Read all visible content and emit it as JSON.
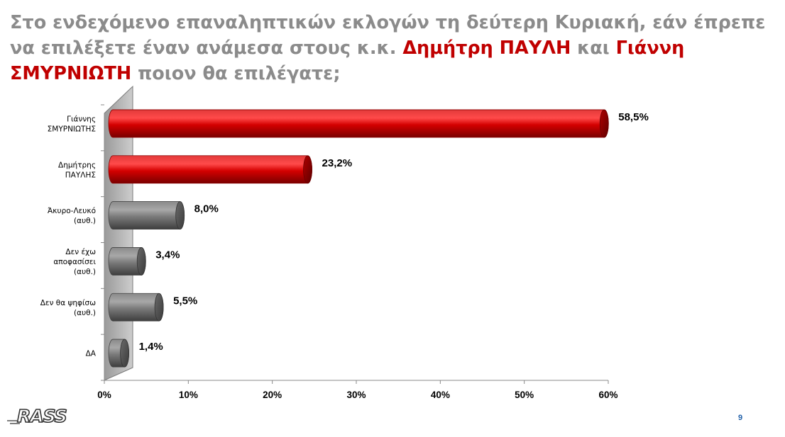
{
  "title": {
    "part1": "Στο ενδεχόμενο επαναληπτικών εκλογών τη δεύτερη Κυριακή, εάν έπρεπε να επιλέξετε έναν ανάμεσα στους κ.κ. ",
    "name1": "Δημήτρη ΠΑΥΛΗ",
    "part2": " και ",
    "name2": "Γιάννη ΣΜΥΡΝΙΩΤΗ",
    "part3": " ποιον θα επιλέγατε;"
  },
  "chart_data": {
    "type": "bar",
    "orientation": "horizontal",
    "categories": [
      [
        "Γιάννης",
        "ΣΜΥΡΝΙΩΤΗΣ"
      ],
      [
        "Δημήτρης",
        "ΠΑΥΛΗΣ"
      ],
      [
        "Άκυρο-Λευκό",
        "(αυθ.)"
      ],
      [
        "Δεν έχω",
        "αποφασίσει",
        "(αυθ.)"
      ],
      [
        "Δεν θα ψηφίσω",
        "(αυθ.)"
      ],
      [
        "ΔΑ"
      ]
    ],
    "values": [
      58.5,
      23.2,
      8.0,
      3.4,
      5.5,
      1.4
    ],
    "value_labels": [
      "58,5%",
      "23,2%",
      "8,0%",
      "3,4%",
      "5,5%",
      "1,4%"
    ],
    "colors": [
      "#cc0000",
      "#cc0000",
      "#808080",
      "#808080",
      "#808080",
      "#808080"
    ],
    "xlim": [
      0,
      60
    ],
    "xticks": [
      0,
      10,
      20,
      30,
      40,
      50,
      60
    ],
    "xtick_labels": [
      "0%",
      "10%",
      "20%",
      "30%",
      "40%",
      "50%",
      "60%"
    ],
    "style": "3d-cylinder",
    "grid": false
  },
  "footer": {
    "logo_text": "RASS",
    "page_number": "9"
  },
  "colors": {
    "title_gray": "#8b8b8b",
    "highlight_red": "#c00000",
    "page_number_blue": "#1f5fa8"
  }
}
